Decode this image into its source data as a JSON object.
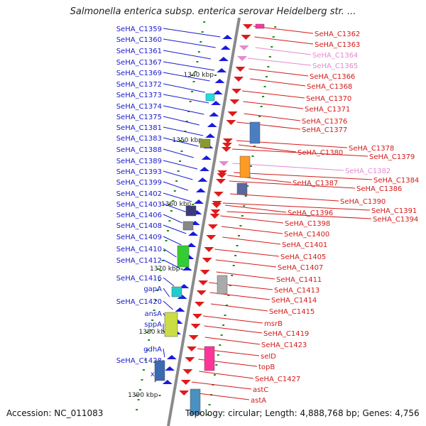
{
  "title": "Salmonella enterica subsp. enterica serovar Heidelberg str. ...",
  "footer": {
    "accession": "Accession: NC_011083",
    "topology": "Topology: circular; Length: 4,888,768 bp; Genes: 4,756"
  },
  "colors": {
    "left_label": "#1a1acc",
    "right_label": "#d41a1a",
    "right_label_faded": "#e888d0",
    "backbone": "#8a8a8a",
    "tick": "#1a8a1a"
  },
  "scale_labels": [
    "1340 kbp",
    "1350 kbp",
    "1360 kbp",
    "1370 kbp",
    "1380 kbp",
    "1390 kbp"
  ],
  "left_genes": [
    "SeHA_C1359",
    "SeHA_C1360",
    "SeHA_C1361",
    "SeHA_C1367",
    "SeHA_C1369",
    "SeHA_C1372",
    "SeHA_C1373",
    "SeHA_C1374",
    "SeHA_C1375",
    "SeHA_C1381",
    "SeHA_C1383",
    "SeHA_C1388",
    "SeHA_C1389",
    "SeHA_C1393",
    "SeHA_C1399",
    "SeHA_C1402",
    "SeHA_C1403",
    "SeHA_C1406",
    "SeHA_C1408",
    "SeHA_C1409",
    "SeHA_C1410",
    "SeHA_C1412",
    "SeHA_C1416",
    "gapA",
    "SeHA_C1420",
    "ansA",
    "sppA",
    "gdhA",
    "SeHA_C1428",
    "xth"
  ],
  "right_genes": [
    "SeHA_C1362",
    "SeHA_C1363",
    "SeHA_C1364",
    "SeHA_C1365",
    "SeHA_C1366",
    "SeHA_C1368",
    "SeHA_C1370",
    "SeHA_C1371",
    "SeHA_C1376",
    "SeHA_C1377",
    "SeHA_C1378",
    "SeHA_C1380",
    "SeHA_C1379",
    "SeHA_C1382",
    "SeHA_C1384",
    "SeHA_C1387",
    "SeHA_C1386",
    "SeHA_C1390",
    "SeHA_C1391",
    "SeHA_C1396",
    "SeHA_C1394",
    "SeHA_C1398",
    "SeHA_C1400",
    "SeHA_C1401",
    "SeHA_C1405",
    "SeHA_C1407",
    "SeHA_C1411",
    "SeHA_C1413",
    "SeHA_C1414",
    "SeHA_C1415",
    "msrB",
    "SeHA_C1419",
    "SeHA_C1423",
    "selD",
    "topB",
    "SeHA_C1427",
    "astC",
    "astA"
  ],
  "right_faded": [
    "SeHA_C1364",
    "SeHA_C1365",
    "SeHA_C1382"
  ]
}
